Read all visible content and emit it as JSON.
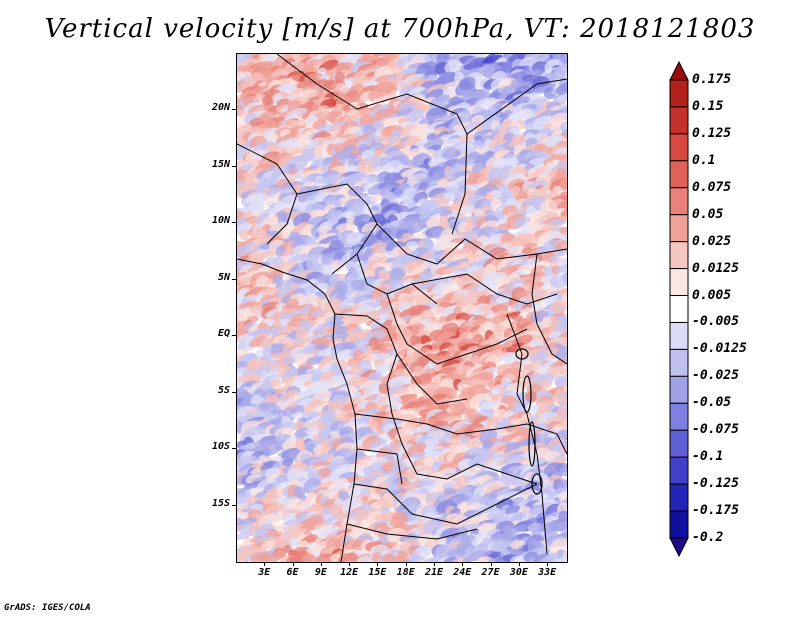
{
  "title": "Vertical velocity [m/s] at 700hPa, VT: 2018121803",
  "footer": "GrADS: IGES/COLA",
  "map": {
    "lat_labels": [
      "20N",
      "15N",
      "10N",
      "5N",
      "EQ",
      "5S",
      "10S",
      "15S"
    ],
    "lat_values": [
      20,
      15,
      10,
      5,
      0,
      -5,
      -10,
      -15
    ],
    "lon_labels": [
      "3E",
      "6E",
      "9E",
      "12E",
      "15E",
      "18E",
      "21E",
      "24E",
      "27E",
      "30E",
      "33E"
    ],
    "lon_values": [
      3,
      6,
      9,
      12,
      15,
      18,
      21,
      24,
      27,
      30,
      33
    ],
    "lat_range": [
      -20,
      25
    ],
    "lon_range": [
      0,
      35
    ]
  },
  "colorbar": {
    "labels": [
      "0.175",
      "0.15",
      "0.125",
      "0.1",
      "0.075",
      "0.05",
      "0.025",
      "0.0125",
      "0.005",
      "-0.005",
      "-0.0125",
      "-0.025",
      "-0.05",
      "-0.075",
      "-0.1",
      "-0.125",
      "-0.175",
      "-0.2"
    ],
    "colors": [
      "#9b0b0b",
      "#b3211c",
      "#c5312b",
      "#d6493f",
      "#e0615a",
      "#e78179",
      "#f0a29a",
      "#f6c6c0",
      "#fce6e3",
      "#ffffff",
      "#dcdcf6",
      "#bfbff0",
      "#a1a1e8",
      "#8080e0",
      "#6060d6",
      "#4040c9",
      "#2424b8",
      "#1010a0",
      "#1f0a8a"
    ]
  }
}
